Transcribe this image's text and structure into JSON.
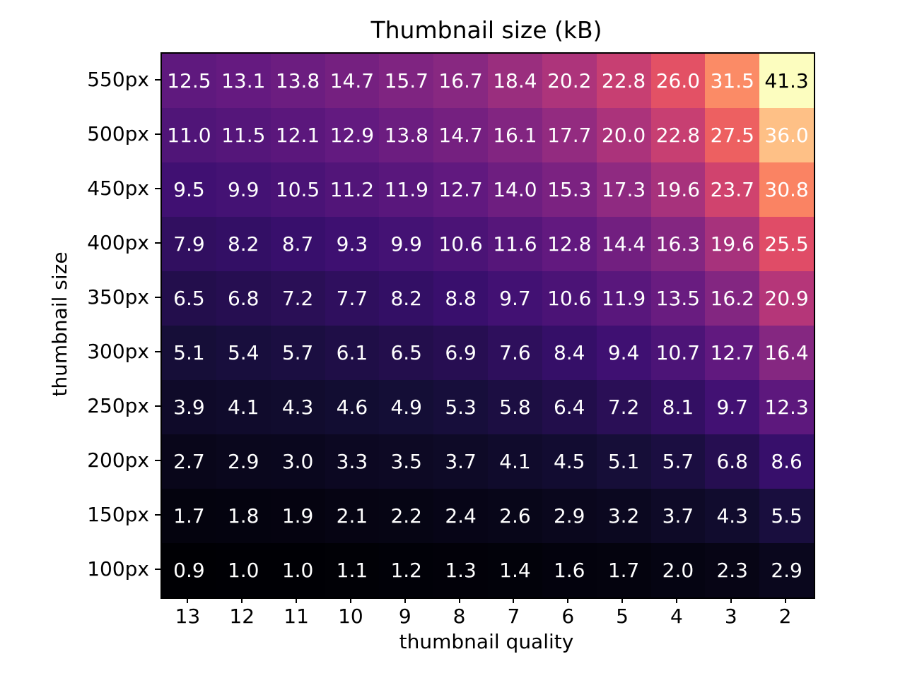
{
  "chart_data": {
    "type": "heatmap",
    "title": "Thumbnail size (kB)",
    "xlabel": "thumbnail quality",
    "ylabel": "thumbnail size",
    "x_ticks": [
      "13",
      "12",
      "11",
      "10",
      "9",
      "8",
      "7",
      "6",
      "5",
      "4",
      "3",
      "2"
    ],
    "y_ticks": [
      "550px",
      "500px",
      "450px",
      "400px",
      "350px",
      "300px",
      "250px",
      "200px",
      "150px",
      "100px"
    ],
    "values": [
      [
        12.5,
        13.1,
        13.8,
        14.7,
        15.7,
        16.7,
        18.4,
        20.2,
        22.8,
        26.0,
        31.5,
        41.3
      ],
      [
        11.0,
        11.5,
        12.1,
        12.9,
        13.8,
        14.7,
        16.1,
        17.7,
        20.0,
        22.8,
        27.5,
        36.0
      ],
      [
        9.5,
        9.9,
        10.5,
        11.2,
        11.9,
        12.7,
        14.0,
        15.3,
        17.3,
        19.6,
        23.7,
        30.8
      ],
      [
        7.9,
        8.2,
        8.7,
        9.3,
        9.9,
        10.6,
        11.6,
        12.8,
        14.4,
        16.3,
        19.6,
        25.5
      ],
      [
        6.5,
        6.8,
        7.2,
        7.7,
        8.2,
        8.8,
        9.7,
        10.6,
        11.9,
        13.5,
        16.2,
        20.9
      ],
      [
        5.1,
        5.4,
        5.7,
        6.1,
        6.5,
        6.9,
        7.6,
        8.4,
        9.4,
        10.7,
        12.7,
        16.4
      ],
      [
        3.9,
        4.1,
        4.3,
        4.6,
        4.9,
        5.3,
        5.8,
        6.4,
        7.2,
        8.1,
        9.7,
        12.3
      ],
      [
        2.7,
        2.9,
        3.0,
        3.3,
        3.5,
        3.7,
        4.1,
        4.5,
        5.1,
        5.7,
        6.8,
        8.6
      ],
      [
        1.7,
        1.8,
        1.9,
        2.1,
        2.2,
        2.4,
        2.6,
        2.9,
        3.2,
        3.7,
        4.3,
        5.5
      ],
      [
        0.9,
        1.0,
        1.0,
        1.1,
        1.2,
        1.3,
        1.4,
        1.6,
        1.7,
        2.0,
        2.3,
        2.9
      ]
    ],
    "colormap": "magma",
    "vmin": 0.9,
    "vmax": 41.3,
    "value_precision": 1,
    "annotation_colors": {
      "light_cells": "#000000",
      "dark_cells": "#ffffff"
    },
    "background": "#ffffff",
    "grid": false,
    "legend": false
  }
}
